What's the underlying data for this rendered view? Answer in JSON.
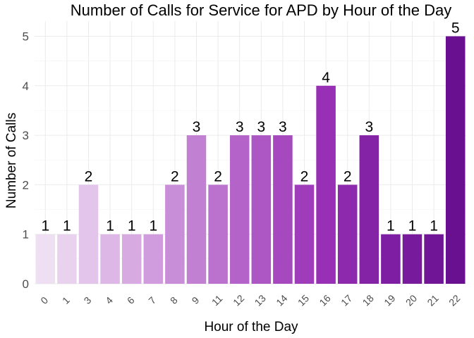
{
  "chart_data": {
    "type": "bar",
    "title": "Number of Calls for Service for APD by Hour of the Day",
    "xlabel": "Hour of the Day",
    "ylabel": "Number of Calls",
    "categories": [
      "0",
      "1",
      "3",
      "4",
      "6",
      "7",
      "8",
      "9",
      "11",
      "12",
      "13",
      "14",
      "15",
      "16",
      "17",
      "18",
      "19",
      "20",
      "21",
      "22"
    ],
    "values": [
      1,
      1,
      2,
      1,
      1,
      1,
      2,
      3,
      2,
      3,
      3,
      3,
      2,
      4,
      2,
      3,
      1,
      1,
      1,
      5
    ],
    "ylim": [
      0,
      5
    ],
    "yticks": [
      "0",
      "1",
      "2",
      "3",
      "4",
      "5"
    ],
    "grid": true,
    "legend": "none",
    "bar_colors": [
      "#efdff2",
      "#e9d2ee",
      "#e3c4ea",
      "#ddb7e6",
      "#d7aae2",
      "#d09cdd",
      "#c98ed8",
      "#c280d3",
      "#bb72ce",
      "#b464c9",
      "#ad57c4",
      "#a649bf",
      "#9f3cba",
      "#9830b6",
      "#8c29ac",
      "#8523a7",
      "#7e1ea2",
      "#771a9c",
      "#701596",
      "#681090"
    ]
  }
}
